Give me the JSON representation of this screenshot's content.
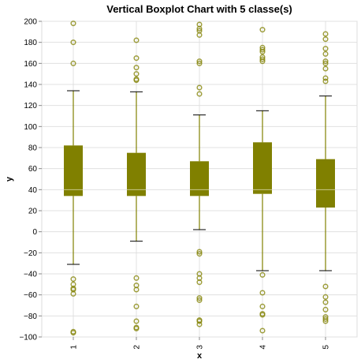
{
  "chart_data": {
    "type": "boxplot",
    "title": "Vertical Boxplot Chart with 5 classe(s)",
    "xlabel": "x",
    "ylabel": "y",
    "ylim": [
      -100,
      200
    ],
    "y_ticks": [
      -100,
      -80,
      -60,
      -40,
      -20,
      0,
      20,
      40,
      60,
      80,
      100,
      120,
      140,
      160,
      180,
      200
    ],
    "grid": true,
    "legend": "none",
    "color": "#808000",
    "categories": [
      "1",
      "2",
      "3",
      "4",
      "5"
    ],
    "boxes": [
      {
        "category": "1",
        "whisker_low": -31,
        "q1": 34,
        "median": 40,
        "q3": 82,
        "whisker_high": 134,
        "outliers": [
          198,
          180,
          160,
          -45,
          -50,
          -54,
          -55,
          -59,
          -95,
          -96
        ]
      },
      {
        "category": "2",
        "whisker_low": -9,
        "q1": 34,
        "median": 40,
        "q3": 75,
        "whisker_high": 133,
        "outliers": [
          182,
          165,
          156,
          150,
          145,
          144,
          -44,
          -51,
          -55,
          -71,
          -85,
          -91,
          -92
        ]
      },
      {
        "category": "3",
        "whisker_low": 2,
        "q1": 34,
        "median": 40,
        "q3": 67,
        "whisker_high": 111,
        "outliers": [
          197,
          193,
          191,
          187,
          162,
          160,
          137,
          131,
          -19,
          -21,
          -40,
          -44,
          -48,
          -63,
          -65,
          -84,
          -85,
          -88
        ]
      },
      {
        "category": "4",
        "whisker_low": -37,
        "q1": 36,
        "median": 40,
        "q3": 85,
        "whisker_high": 115,
        "outliers": [
          192,
          175,
          173,
          171,
          166,
          164,
          162,
          -41,
          -58,
          -71,
          -78,
          -79,
          -94
        ]
      },
      {
        "category": "5",
        "whisker_low": -37,
        "q1": 23,
        "median": 40,
        "q3": 69,
        "whisker_high": 129,
        "outliers": [
          188,
          183,
          174,
          169,
          162,
          160,
          155,
          146,
          143,
          -52,
          -62,
          -67,
          -74,
          -81,
          -83,
          -85
        ]
      }
    ]
  }
}
